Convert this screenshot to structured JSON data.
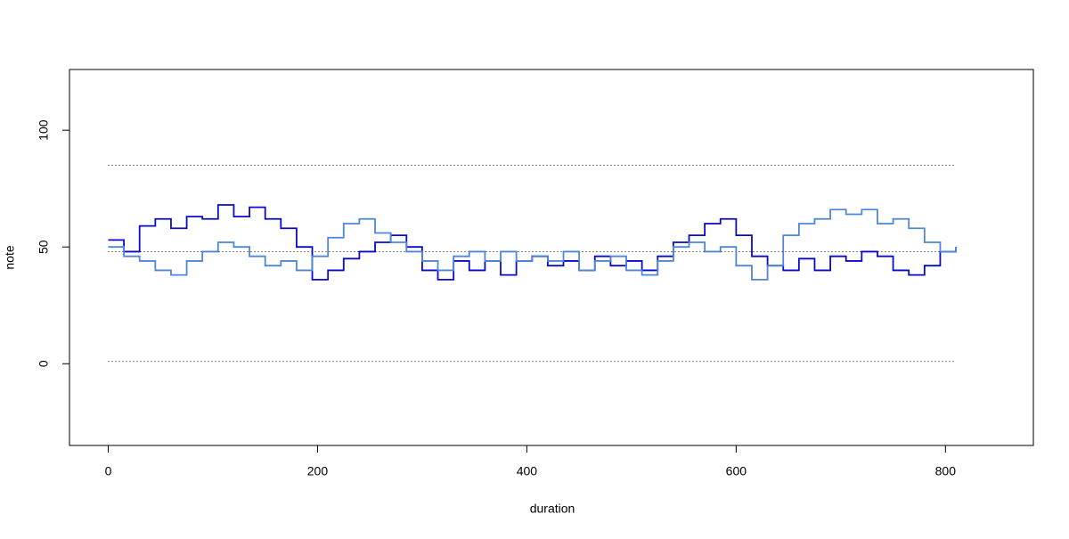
{
  "chart_data": {
    "type": "step",
    "x_label": "duration",
    "y_label": "note",
    "x": [
      0,
      15,
      30,
      45,
      60,
      75,
      90,
      105,
      120,
      135,
      150,
      165,
      180,
      195,
      210,
      225,
      240,
      255,
      270,
      285,
      300,
      315,
      330,
      345,
      360,
      375,
      390,
      405,
      420,
      435,
      450,
      465,
      480,
      495,
      510,
      525,
      540,
      555,
      570,
      585,
      600,
      615,
      630,
      645,
      660,
      675,
      690,
      705,
      720,
      735,
      750,
      765,
      780,
      795,
      810
    ],
    "series": [
      {
        "color": "#0a0acd",
        "values": [
          53,
          48,
          59,
          62,
          58,
          63,
          62,
          68,
          63,
          67,
          62,
          58,
          50,
          36,
          40,
          45,
          48,
          52,
          55,
          50,
          40,
          36,
          44,
          40,
          44,
          38,
          44,
          46,
          42,
          44,
          40,
          46,
          42,
          44,
          40,
          46,
          52,
          55,
          60,
          62,
          55,
          46,
          42,
          40,
          45,
          40,
          46,
          44,
          48,
          46,
          40,
          38,
          42,
          48,
          50
        ]
      },
      {
        "color": "#4f86d6",
        "values": [
          50,
          46,
          44,
          40,
          38,
          44,
          48,
          52,
          50,
          46,
          42,
          44,
          40,
          46,
          54,
          60,
          62,
          56,
          52,
          48,
          44,
          40,
          46,
          48,
          44,
          48,
          44,
          46,
          44,
          48,
          40,
          44,
          46,
          40,
          38,
          44,
          50,
          52,
          48,
          50,
          42,
          36,
          42,
          55,
          60,
          62,
          66,
          64,
          66,
          60,
          62,
          58,
          52,
          48,
          50
        ]
      }
    ],
    "hlines": [
      85,
      48,
      1
    ],
    "xlim": [
      -37,
      884
    ],
    "ylim": [
      -35,
      126
    ],
    "xticks": [
      0,
      200,
      400,
      600,
      800
    ],
    "yticks": [
      0,
      50,
      100
    ]
  }
}
